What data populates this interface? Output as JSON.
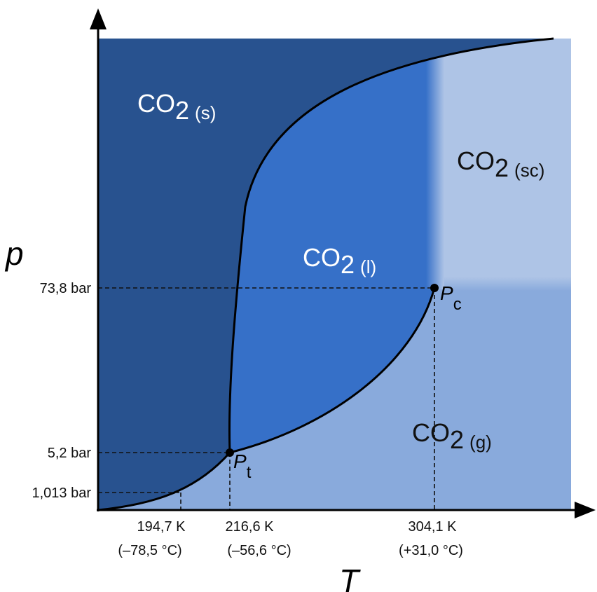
{
  "axes": {
    "x_label": "T",
    "y_label": "p"
  },
  "pressure_ticks": [
    "73,8 bar",
    "5,2 bar",
    "1,013 bar"
  ],
  "temperature_ticks": [
    {
      "kelvin": "194,7 K",
      "celsius": "(–78,5 °C)"
    },
    {
      "kelvin": "216,6 K",
      "celsius": "(–56,6 °C)"
    },
    {
      "kelvin": "304,1 K",
      "celsius": "(+31,0 °C)"
    }
  ],
  "phases": {
    "solid": {
      "base": "CO",
      "sub": "2",
      "state": "(s)"
    },
    "liquid": {
      "base": "CO",
      "sub": "2",
      "state": "(l)"
    },
    "gas": {
      "base": "CO",
      "sub": "2",
      "state": "(g)"
    },
    "supercritical": {
      "base": "CO",
      "sub": "2",
      "state": "(sc)"
    }
  },
  "points": {
    "triple": {
      "base": "P",
      "sub": "t"
    },
    "critical": {
      "base": "P",
      "sub": "c"
    }
  },
  "colors": {
    "solid": "#28528f",
    "liquid": "#3670c8",
    "gas": "#89aadc",
    "supercritical": "#aec4e6"
  }
}
